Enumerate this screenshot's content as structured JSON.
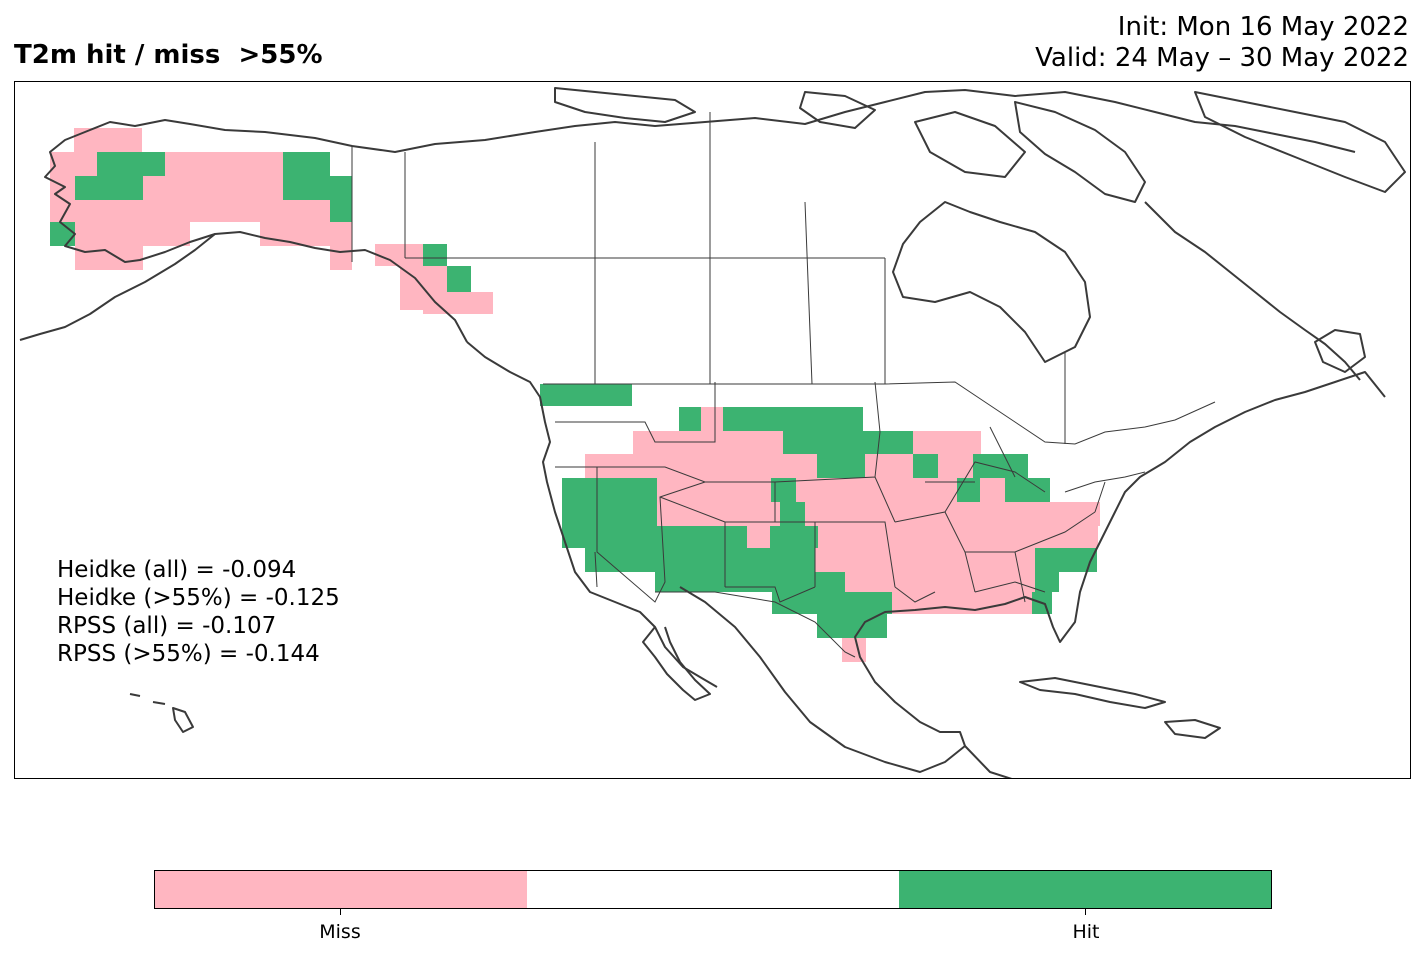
{
  "title": {
    "left": "T2m hit / miss  >55%",
    "init": "Init: Mon 16 May 2022",
    "valid": "Valid: 24 May – 30 May 2022"
  },
  "scores": {
    "heidke_all": "Heidke (all) = -0.094",
    "heidke_55": "Heidke (>55%) = -0.125",
    "rpss_all": "RPSS (all) = -0.107",
    "rpss_55": "RPSS (>55%) = -0.144"
  },
  "colorbar": {
    "colors": [
      "#FFB6C1",
      "#FFFFFF",
      "#3CB371"
    ],
    "labels": [
      "Miss",
      "Hit"
    ]
  },
  "colors": {
    "miss": "#FFB6C1",
    "hit": "#3CB371",
    "coast": "#3a3a3a",
    "border": "#000000"
  }
}
